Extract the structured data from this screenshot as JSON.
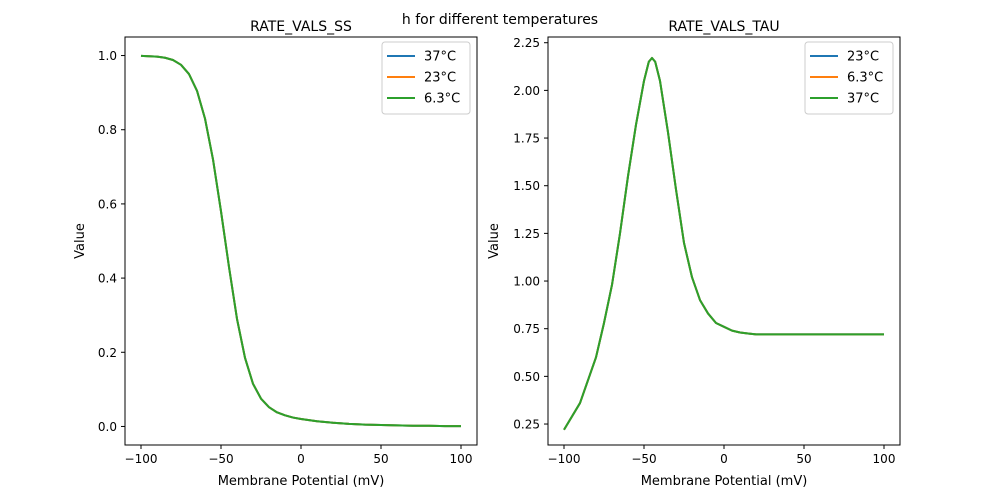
{
  "figure": {
    "suptitle": "h for different temperatures"
  },
  "chart_data": [
    {
      "type": "line",
      "title": "RATE_VALS_SS",
      "xlabel": "Membrane Potential (mV)",
      "ylabel": "Value",
      "xlim": [
        -110,
        110
      ],
      "ylim": [
        -0.05,
        1.05
      ],
      "xticks": [
        -100,
        -50,
        0,
        50,
        100
      ],
      "xtick_labels": [
        "−100",
        "−50",
        "0",
        "50",
        "100"
      ],
      "yticks": [
        0.0,
        0.2,
        0.4,
        0.6,
        0.8,
        1.0
      ],
      "ytick_labels": [
        "0.0",
        "0.2",
        "0.4",
        "0.6",
        "0.8",
        "1.0"
      ],
      "grid": false,
      "legend_position": "top-right",
      "x": [
        -100,
        -95,
        -90,
        -85,
        -80,
        -75,
        -70,
        -65,
        -60,
        -55,
        -50,
        -45,
        -40,
        -35,
        -30,
        -25,
        -20,
        -15,
        -10,
        -5,
        0,
        10,
        20,
        30,
        40,
        50,
        60,
        70,
        80,
        90,
        100
      ],
      "series": [
        {
          "name": "37°C",
          "color": "#1f77b4",
          "values": [
            0.999,
            0.998,
            0.997,
            0.994,
            0.988,
            0.975,
            0.95,
            0.905,
            0.83,
            0.72,
            0.58,
            0.43,
            0.29,
            0.185,
            0.115,
            0.075,
            0.052,
            0.038,
            0.03,
            0.024,
            0.02,
            0.014,
            0.01,
            0.007,
            0.005,
            0.004,
            0.003,
            0.002,
            0.002,
            0.001,
            0.001
          ]
        },
        {
          "name": "23°C",
          "color": "#ff7f0e",
          "values": [
            0.999,
            0.998,
            0.997,
            0.994,
            0.988,
            0.975,
            0.95,
            0.905,
            0.83,
            0.72,
            0.58,
            0.43,
            0.29,
            0.185,
            0.115,
            0.075,
            0.052,
            0.038,
            0.03,
            0.024,
            0.02,
            0.014,
            0.01,
            0.007,
            0.005,
            0.004,
            0.003,
            0.002,
            0.002,
            0.001,
            0.001
          ]
        },
        {
          "name": "6.3°C",
          "color": "#2ca02c",
          "values": [
            0.999,
            0.998,
            0.997,
            0.994,
            0.988,
            0.975,
            0.95,
            0.905,
            0.83,
            0.72,
            0.58,
            0.43,
            0.29,
            0.185,
            0.115,
            0.075,
            0.052,
            0.038,
            0.03,
            0.024,
            0.02,
            0.014,
            0.01,
            0.007,
            0.005,
            0.004,
            0.003,
            0.002,
            0.002,
            0.001,
            0.001
          ]
        }
      ]
    },
    {
      "type": "line",
      "title": "RATE_VALS_TAU",
      "xlabel": "Membrane Potential (mV)",
      "ylabel": "Value",
      "xlim": [
        -110,
        110
      ],
      "ylim": [
        0.14,
        2.28
      ],
      "xticks": [
        -100,
        -50,
        0,
        50,
        100
      ],
      "xtick_labels": [
        "−100",
        "−50",
        "0",
        "50",
        "100"
      ],
      "yticks": [
        0.25,
        0.5,
        0.75,
        1.0,
        1.25,
        1.5,
        1.75,
        2.0,
        2.25
      ],
      "ytick_labels": [
        "0.25",
        "0.50",
        "0.75",
        "1.00",
        "1.25",
        "1.50",
        "1.75",
        "2.00",
        "2.25"
      ],
      "grid": false,
      "legend_position": "top-right",
      "x": [
        -100,
        -90,
        -85,
        -80,
        -75,
        -70,
        -65,
        -60,
        -55,
        -50,
        -47,
        -45,
        -43,
        -40,
        -35,
        -30,
        -25,
        -20,
        -15,
        -10,
        -5,
        0,
        5,
        10,
        15,
        20,
        30,
        40,
        50,
        60,
        70,
        80,
        90,
        100
      ],
      "series": [
        {
          "name": "23°C",
          "color": "#1f77b4",
          "values": [
            0.22,
            0.36,
            0.48,
            0.6,
            0.78,
            0.98,
            1.25,
            1.55,
            1.82,
            2.05,
            2.15,
            2.17,
            2.15,
            2.05,
            1.78,
            1.48,
            1.2,
            1.02,
            0.9,
            0.83,
            0.78,
            0.76,
            0.74,
            0.73,
            0.725,
            0.72,
            0.72,
            0.72,
            0.72,
            0.72,
            0.72,
            0.72,
            0.72,
            0.72
          ]
        },
        {
          "name": "6.3°C",
          "color": "#ff7f0e",
          "values": [
            0.22,
            0.36,
            0.48,
            0.6,
            0.78,
            0.98,
            1.25,
            1.55,
            1.82,
            2.05,
            2.15,
            2.17,
            2.15,
            2.05,
            1.78,
            1.48,
            1.2,
            1.02,
            0.9,
            0.83,
            0.78,
            0.76,
            0.74,
            0.73,
            0.725,
            0.72,
            0.72,
            0.72,
            0.72,
            0.72,
            0.72,
            0.72,
            0.72,
            0.72
          ]
        },
        {
          "name": "37°C",
          "color": "#2ca02c",
          "values": [
            0.22,
            0.36,
            0.48,
            0.6,
            0.78,
            0.98,
            1.25,
            1.55,
            1.82,
            2.05,
            2.15,
            2.17,
            2.15,
            2.05,
            1.78,
            1.48,
            1.2,
            1.02,
            0.9,
            0.83,
            0.78,
            0.76,
            0.74,
            0.73,
            0.725,
            0.72,
            0.72,
            0.72,
            0.72,
            0.72,
            0.72,
            0.72,
            0.72,
            0.72
          ]
        }
      ]
    }
  ]
}
